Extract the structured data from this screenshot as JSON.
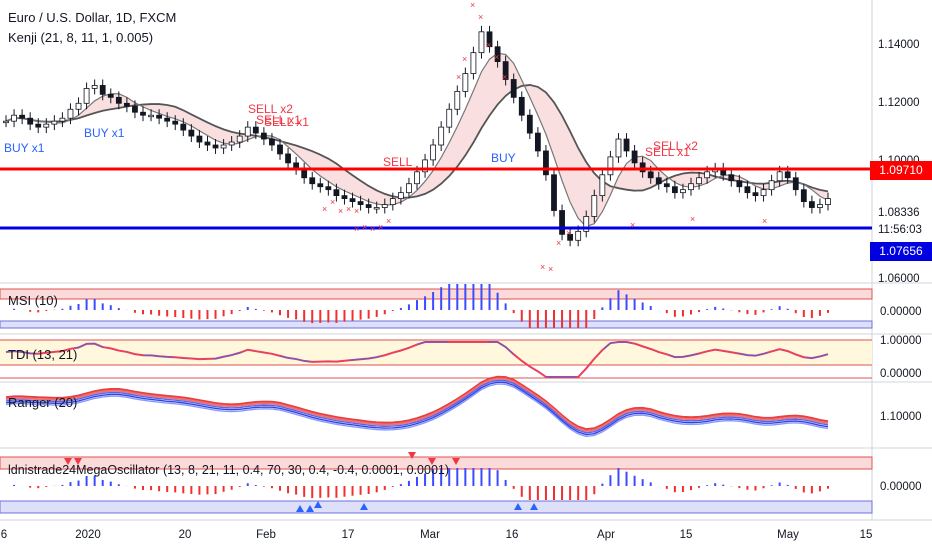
{
  "header": {
    "symbol_title": "Euro / U.S. Dollar, 1D, FXCM",
    "indicator_main": "Kenji (21, 8, 11, 1, 0.005)"
  },
  "panes": {
    "msi": {
      "label": "MSI (10)",
      "axis": [
        "0.00000"
      ]
    },
    "tdi": {
      "label": "TDI (13, 21)",
      "axis": [
        "1.00000",
        "0.00000"
      ]
    },
    "ranger": {
      "label": "Ranger (20)",
      "axis": [
        "1.10000"
      ]
    },
    "mega": {
      "label": "ldnistrade24MegaOscillator (13, 8, 21, 11, 0.4, 70, 30, 0.4, -0.4, 0.0001, 0.0001)",
      "axis": [
        "0.00000"
      ]
    }
  },
  "price_axis": {
    "ticks": [
      "1.14000",
      "1.12000",
      "1.10000",
      "1.08336",
      "1.06000"
    ],
    "countdown": "11:56:03",
    "red_level": "1.09710",
    "blue_level": "1.07656"
  },
  "time_axis": {
    "ticks": [
      "6",
      "2020",
      "20",
      "Feb",
      "17",
      "Mar",
      "16",
      "Apr",
      "15",
      "May",
      "15"
    ]
  },
  "signals": [
    "BUY x1",
    "BUY x1",
    "SELL x2",
    "SELL x1",
    "SELL x1",
    "SELL",
    "BUY",
    "SELL x1",
    "SELL x2"
  ],
  "colors": {
    "up": "#131722",
    "down": "#131722",
    "red_line": "#ff0000",
    "blue_line": "#0000e0",
    "ma_fast": "#555555",
    "ma_slow": "#444444",
    "sell_text": "#f23645",
    "buy_text": "#2962ff"
  }
}
